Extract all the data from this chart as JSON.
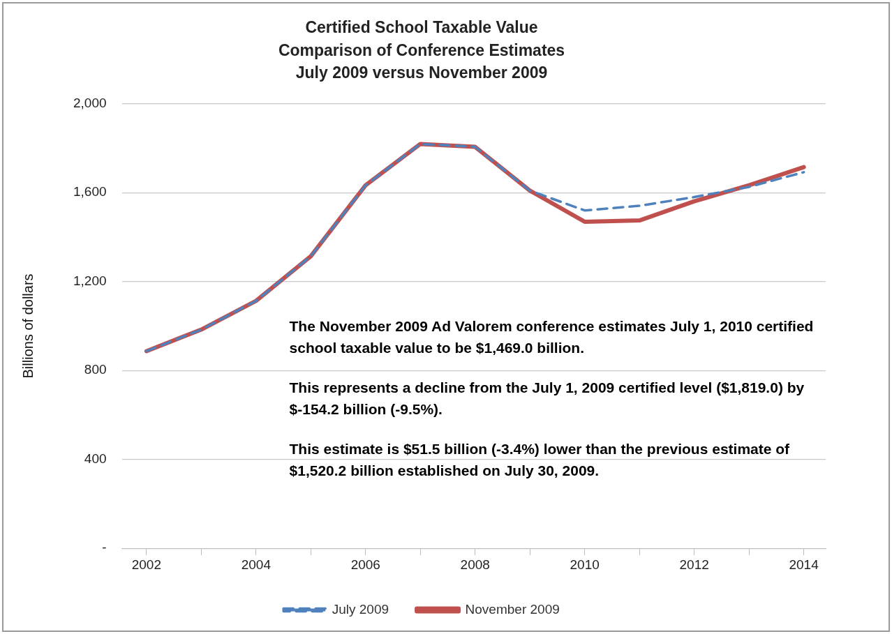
{
  "chart_data": {
    "type": "line",
    "title": "Certified School Taxable Value",
    "subtitle": "Comparison of Conference Estimates\nJuly 2009 versus November 2009",
    "ylabel": "Billions of dollars",
    "x": [
      2002,
      2003,
      2004,
      2005,
      2006,
      2007,
      2008,
      2009,
      2010,
      2011,
      2012,
      2013,
      2014
    ],
    "series": [
      {
        "name": "July 2009",
        "color": "#4f81bd",
        "line_style": "dashed",
        "values": [
          887,
          984,
          1113,
          1314,
          1633,
          1819,
          1806,
          1609,
          1520,
          1541,
          1580,
          1626,
          1692
        ]
      },
      {
        "name": "November 2009",
        "color": "#c0504d",
        "line_style": "solid",
        "values": [
          887,
          984,
          1113,
          1314,
          1633,
          1819,
          1806,
          1609,
          1469,
          1475,
          1561,
          1633,
          1715
        ]
      }
    ],
    "xlim": [
      2001.55,
      2014.4
    ],
    "xticks": [
      2002,
      {
        "value": 2003,
        "label": null
      },
      2004,
      {
        "value": 2005,
        "label": null
      },
      2006,
      {
        "value": 2007,
        "label": null
      },
      2008,
      {
        "value": 2009,
        "label": null
      },
      2010,
      {
        "value": 2011,
        "label": null
      },
      2012,
      {
        "value": 2013,
        "label": null
      },
      2014
    ],
    "ylim": [
      0,
      2000
    ],
    "yticks": [
      {
        "value": 0,
        "label": "-"
      },
      400,
      800,
      {
        "value": 1200,
        "label": "1,200"
      },
      {
        "value": 1600,
        "label": "1,600"
      },
      {
        "value": 2000,
        "label": "2,000"
      }
    ],
    "grid": "y",
    "legend": "bottom",
    "marker": "none",
    "annotations": [
      "The November 2009 Ad Valorem conference estimates July 1, 2010 certified school taxable value to be $1,469.0 billion.",
      "This represents a decline from the July 1, 2009 certified level ($1,819.0) by $-154.2 billion (-9.5%).",
      "This estimate is $51.5 billion (-3.4%) lower than the previous estimate of $1,520.2 billion established on July 30, 2009."
    ]
  }
}
